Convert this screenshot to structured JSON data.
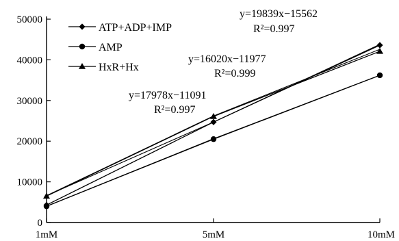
{
  "chart_data": {
    "type": "line",
    "title": "",
    "xlabel": "",
    "ylabel": "",
    "categories": [
      "1mM",
      "5mM",
      "10mM"
    ],
    "ylim": [
      0,
      50000
    ],
    "yticks": [
      "0",
      "10000",
      "20000",
      "30000",
      "40000",
      "50000"
    ],
    "legend": "top-left",
    "grid": false,
    "series": [
      {
        "name": "ATP+ADP+IMP",
        "marker": "diamond",
        "values": [
          4300,
          24700,
          43600
        ]
      },
      {
        "name": "AMP",
        "marker": "circle",
        "values": [
          4000,
          20500,
          36200
        ]
      },
      {
        "name": "HxR+Hx",
        "marker": "triangle",
        "values": [
          6500,
          26100,
          42100
        ]
      }
    ],
    "fits": [
      {
        "values": [
          6600,
          24700,
          43800
        ]
      },
      {
        "values": [
          4000,
          20600,
          36200
        ]
      },
      {
        "values": [
          6600,
          26200,
          42600
        ]
      }
    ],
    "annotations": [
      {
        "equation": "y=19839x−15562",
        "r2": "R²=0.997"
      },
      {
        "equation": "y=16020x−11977",
        "r2": "R²=0.999"
      },
      {
        "equation": "y=17978x−11091",
        "r2": "R²=0.997"
      }
    ]
  }
}
